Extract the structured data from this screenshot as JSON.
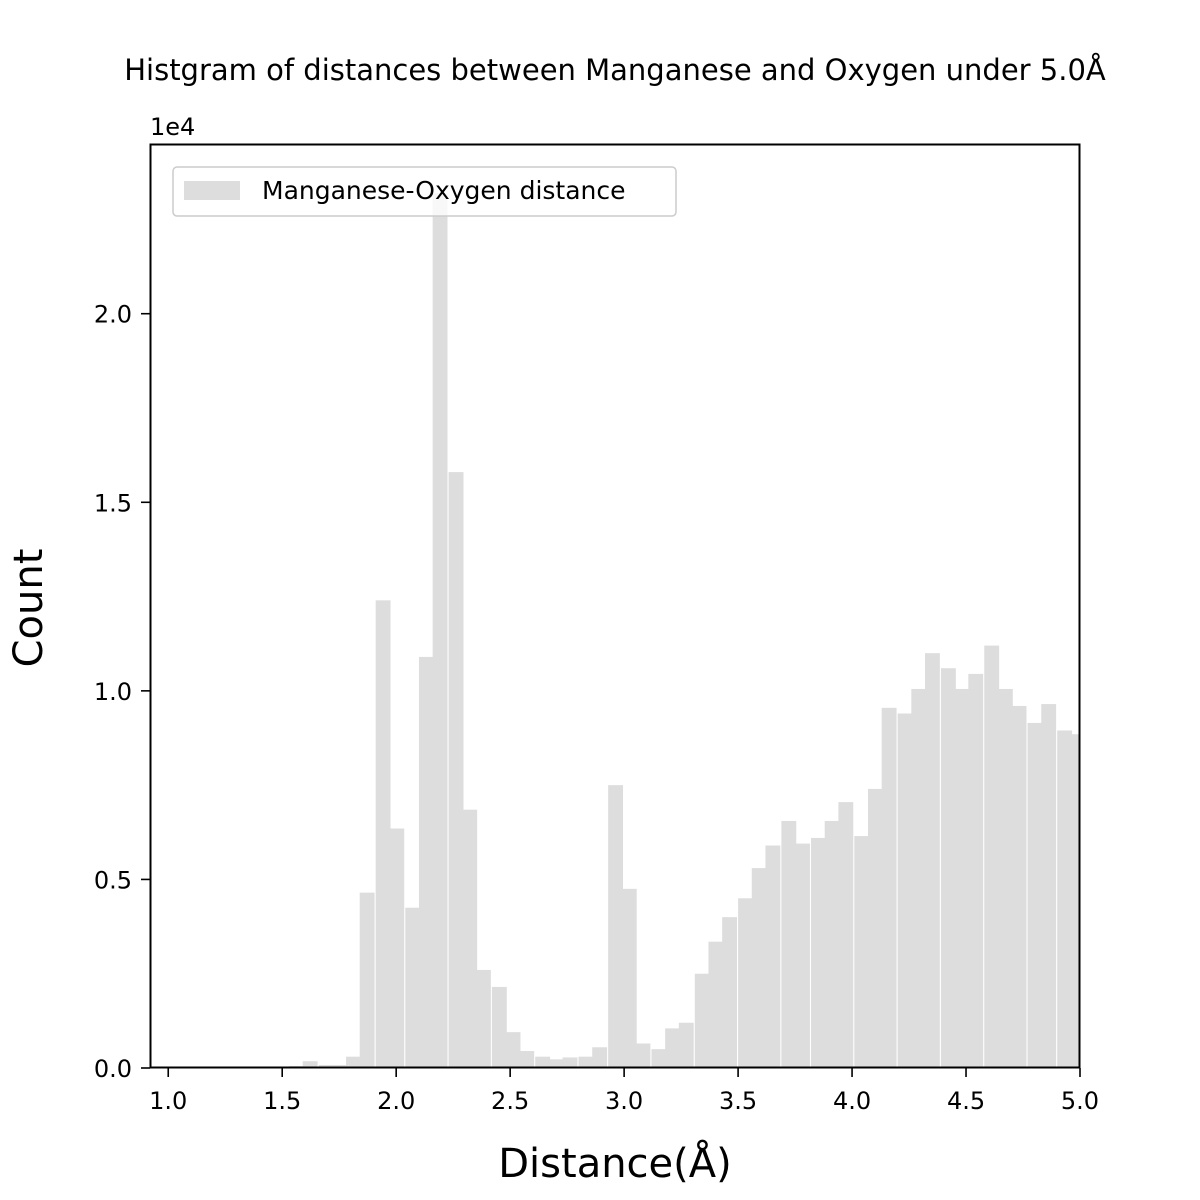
{
  "chart_data": {
    "type": "bar",
    "title": "Histgram of distances between Manganese and Oxygen under 5.0Å",
    "xlabel": "Distance(Å)",
    "ylabel": "Count",
    "y_offset_label": "1e4",
    "xlim": [
      0.92,
      5.0
    ],
    "ylim": [
      0,
      24500
    ],
    "x_ticks": [
      "1.0",
      "1.5",
      "2.0",
      "2.5",
      "3.0",
      "3.5",
      "4.0",
      "4.5",
      "5.0"
    ],
    "x_tick_values": [
      1.0,
      1.5,
      2.0,
      2.5,
      3.0,
      3.5,
      4.0,
      4.5,
      5.0
    ],
    "y_ticks": [
      "0.0",
      "0.5",
      "1.0",
      "1.5",
      "2.0"
    ],
    "y_tick_values": [
      0,
      5000,
      10000,
      15000,
      20000
    ],
    "bin_width": 0.0635,
    "bin_starts": [
      1.53,
      1.59,
      1.66,
      1.72,
      1.78,
      1.84,
      1.91,
      1.97,
      2.04,
      2.1,
      2.16,
      2.23,
      2.29,
      2.35,
      2.42,
      2.48,
      2.54,
      2.61,
      2.67,
      2.73,
      2.8,
      2.86,
      2.93,
      2.99,
      3.05,
      3.12,
      3.18,
      3.24,
      3.31,
      3.37,
      3.43,
      3.5,
      3.56,
      3.62,
      3.69,
      3.75,
      3.82,
      3.88,
      3.94,
      4.01,
      4.07,
      4.13,
      4.2,
      4.26,
      4.32,
      4.39,
      4.45,
      4.51,
      4.58,
      4.64,
      4.7,
      4.77,
      4.83,
      4.9,
      4.96
    ],
    "series": [
      {
        "name": "Manganese-Oxygen distance",
        "color": "#dddddd",
        "values": [
          50,
          180,
          80,
          80,
          300,
          4650,
          12400,
          6350,
          4250,
          10900,
          23200,
          15800,
          6850,
          2600,
          2150,
          950,
          450,
          300,
          230,
          280,
          300,
          550,
          7500,
          4750,
          650,
          500,
          1050,
          1200,
          2500,
          3350,
          4000,
          4500,
          5300,
          5900,
          6550,
          5950,
          6100,
          6550,
          7050,
          6150,
          7400,
          9550,
          9400,
          10050,
          11000,
          10600,
          10050,
          10450,
          11200,
          10050,
          9600,
          9150,
          9650,
          8950,
          8850
        ]
      }
    ],
    "legend": "upper-left",
    "grid": false
  }
}
